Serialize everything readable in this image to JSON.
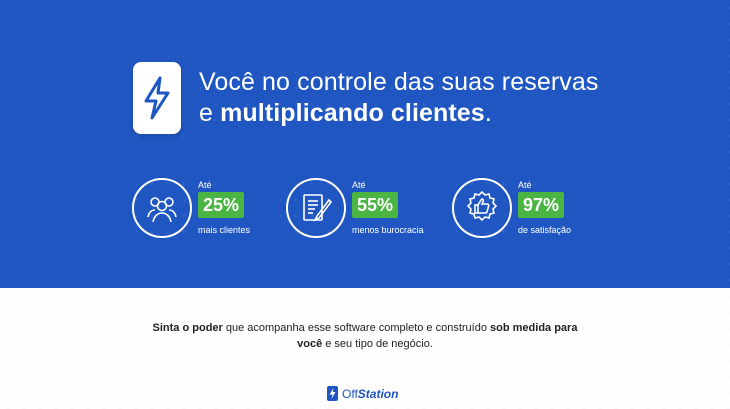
{
  "headline": {
    "line1": "Você no controle das suas reservas",
    "line2_prefix": "e ",
    "line2_bold": "multiplicando clientes",
    "line2_suffix": "."
  },
  "stats": [
    {
      "upto": "Até",
      "percent": "25%",
      "label": "mais clientes",
      "icon": "users-icon"
    },
    {
      "upto": "Até",
      "percent": "55%",
      "label": "menos burocracia",
      "icon": "document-pen-icon"
    },
    {
      "upto": "Até",
      "percent": "97%",
      "label": "de satisfação",
      "icon": "thumbs-up-badge-icon"
    }
  ],
  "tagline": {
    "bold1": "Sinta o poder",
    "text1": " que acompanha esse software completo e construído ",
    "bold2": "sob medida para",
    "bold3": "você",
    "text2": " e seu tipo de negócio."
  },
  "brand": {
    "prefix": "Off",
    "suffix": "Station"
  },
  "colors": {
    "hero_bg": "#1f56c2",
    "accent_green": "#4bb543",
    "text_dark": "#222222"
  }
}
